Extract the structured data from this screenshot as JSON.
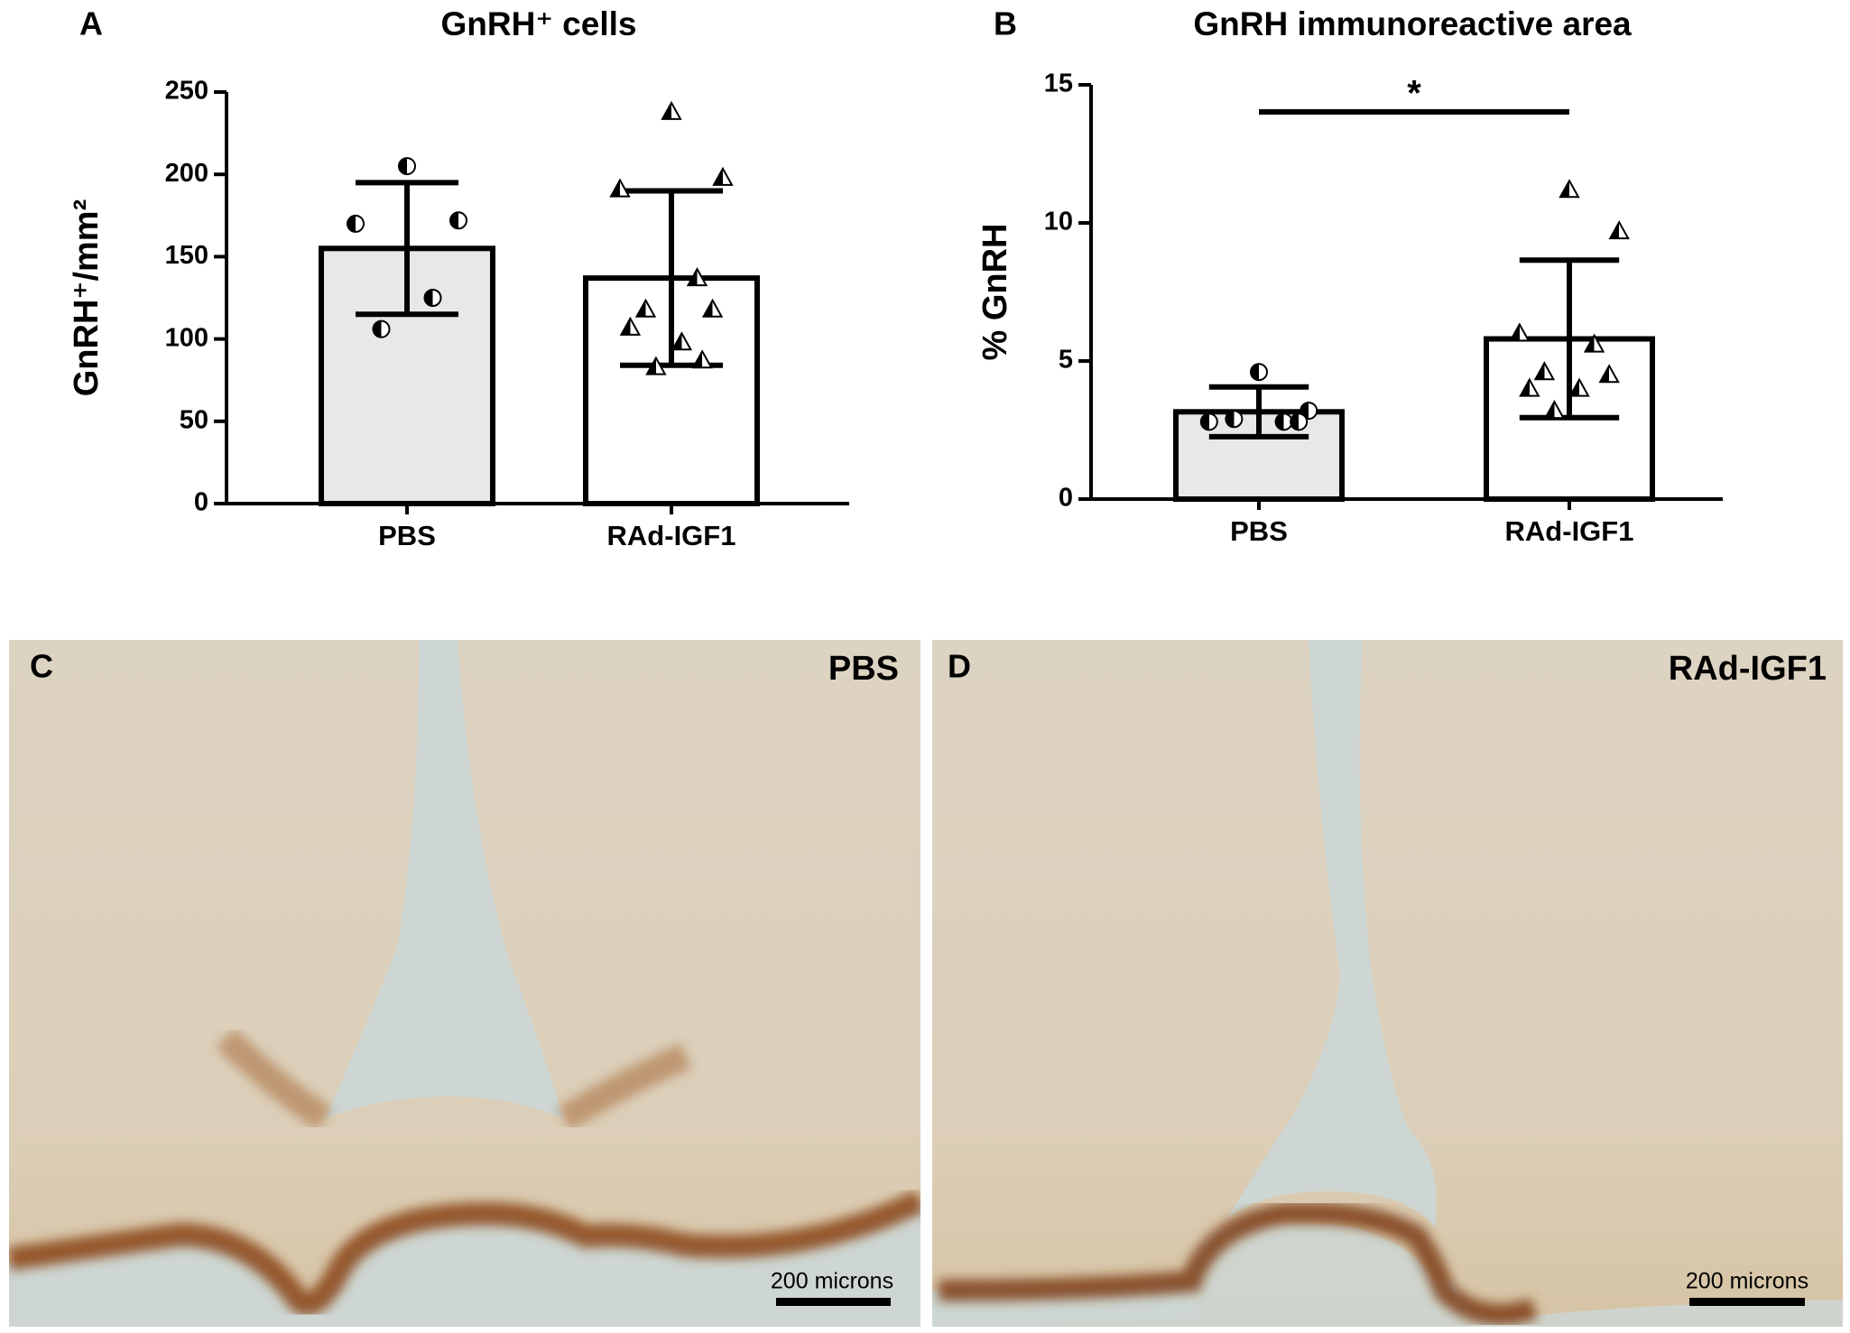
{
  "chart_data": [
    {
      "type": "bar",
      "panel_label": "A",
      "title": "GnRH⁺ cells",
      "y_label": "GnRH⁺/mm²",
      "categories": [
        "PBS",
        "RAd-IGF1"
      ],
      "values": [
        155,
        137
      ],
      "errors": [
        40,
        53
      ],
      "colors": [
        "#e8e8e8",
        "#ffffff"
      ],
      "markers": [
        "circle",
        "triangle"
      ],
      "points": [
        [
          205,
          172,
          170,
          125,
          106
        ],
        [
          238,
          198,
          191,
          137,
          118,
          118,
          107,
          98,
          83,
          87
        ]
      ],
      "ylim": [
        0,
        250
      ],
      "yticks": [
        0,
        50,
        100,
        150,
        200,
        250
      ]
    },
    {
      "type": "bar",
      "panel_label": "B",
      "title": "GnRH immunoreactive area",
      "y_label": "% GnRH",
      "categories": [
        "PBS",
        "RAd-IGF1"
      ],
      "values": [
        3.16,
        5.8
      ],
      "errors": [
        0.9,
        2.85
      ],
      "colors": [
        "#e8e8e8",
        "#ffffff"
      ],
      "markers": [
        "circle",
        "triangle"
      ],
      "points": [
        [
          4.6,
          3.2,
          2.8,
          2.8,
          2.9,
          2.8
        ],
        [
          11.2,
          9.7,
          6.0,
          5.6,
          4.6,
          4.5,
          4.0,
          4.0,
          3.2
        ]
      ],
      "annotation": "*",
      "ylim": [
        0,
        15
      ],
      "yticks": [
        0,
        5,
        10,
        15
      ]
    }
  ],
  "micrographs": [
    {
      "panel_label": "C",
      "label": "PBS",
      "scale_bar": "200 microns"
    },
    {
      "panel_label": "D",
      "label": "RAd-IGF1",
      "scale_bar": "200 microns"
    }
  ]
}
